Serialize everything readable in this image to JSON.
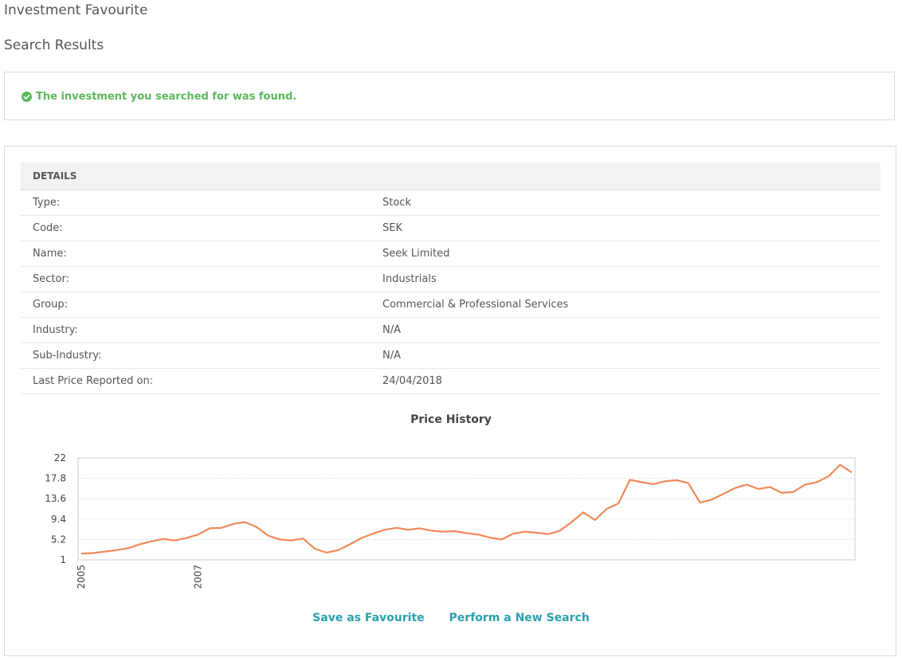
{
  "page": {
    "title": "Investment Favourite",
    "section_title": "Search Results"
  },
  "alert": {
    "message": "The investment you searched for was found.",
    "icon": "check-circle-icon",
    "color": "#5cb85c"
  },
  "details": {
    "header": "DETAILS",
    "rows": [
      {
        "label": "Type:",
        "value": "Stock"
      },
      {
        "label": "Code:",
        "value": "SEK"
      },
      {
        "label": "Name:",
        "value": "Seek Limited"
      },
      {
        "label": "Sector:",
        "value": "Industrials"
      },
      {
        "label": "Group:",
        "value": "Commercial & Professional Services"
      },
      {
        "label": "Industry:",
        "value": "N/A"
      },
      {
        "label": "Sub-Industry:",
        "value": "N/A"
      },
      {
        "label": "Last Price Reported on:",
        "value": "24/04/2018"
      }
    ]
  },
  "chart_data": {
    "type": "line",
    "title": "Price History",
    "xlabel": "",
    "ylabel": "",
    "ylim": [
      1,
      22
    ],
    "yticks": [
      "22",
      "17.8",
      "13.6",
      "9.4",
      "5.2",
      "1"
    ],
    "xticks": [
      "2005",
      "2007"
    ],
    "grid": true,
    "legend": "none",
    "color": "#f0895a",
    "series": [
      {
        "x": [
          2005.0,
          2005.2,
          2005.4,
          2005.6,
          2005.8,
          2006.0,
          2006.2,
          2006.4,
          2006.6,
          2006.8,
          2007.0,
          2007.2,
          2007.4,
          2007.6,
          2007.8,
          2008.0,
          2008.2,
          2008.4,
          2008.6,
          2008.8,
          2009.0,
          2009.2,
          2009.4,
          2009.6,
          2009.8,
          2010.0,
          2010.2,
          2010.4,
          2010.6,
          2010.8,
          2011.0,
          2011.2,
          2011.4,
          2011.6,
          2011.8,
          2012.0,
          2012.2,
          2012.4,
          2012.6,
          2012.8,
          2013.0,
          2013.2,
          2013.4,
          2013.6,
          2013.8,
          2014.0,
          2014.2,
          2014.4,
          2014.6,
          2014.8,
          2015.0,
          2015.2,
          2015.4,
          2015.6,
          2015.8,
          2016.0,
          2016.2,
          2016.4,
          2016.6,
          2016.8,
          2017.0,
          2017.2,
          2017.4,
          2017.6,
          2017.8,
          2018.0,
          2018.2
        ],
        "values": [
          2.3,
          2.4,
          2.7,
          3.0,
          3.4,
          4.2,
          4.8,
          5.3,
          5.0,
          5.5,
          6.2,
          7.5,
          7.6,
          8.4,
          8.8,
          7.8,
          6.0,
          5.2,
          5.0,
          5.4,
          3.3,
          2.5,
          3.0,
          4.2,
          5.5,
          6.4,
          7.2,
          7.6,
          7.2,
          7.5,
          7.0,
          6.8,
          6.9,
          6.5,
          6.2,
          5.6,
          5.2,
          6.4,
          6.8,
          6.6,
          6.3,
          7.0,
          8.8,
          10.8,
          9.2,
          11.5,
          12.6,
          17.5,
          17.0,
          16.6,
          17.2,
          17.4,
          16.8,
          12.8,
          13.4,
          14.6,
          15.8,
          16.5,
          15.6,
          16.0,
          14.8,
          15.0,
          16.5,
          17.0,
          18.2,
          20.6,
          19.0
        ]
      }
    ]
  },
  "actions": {
    "save_label": "Save as Favourite",
    "new_search_label": "Perform a New Search"
  }
}
